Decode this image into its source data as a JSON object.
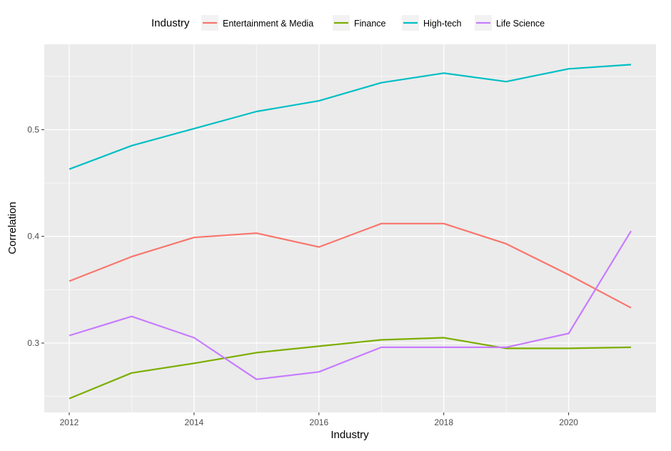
{
  "chart_data": {
    "type": "line",
    "legend_title": "Industry",
    "legend_position": "top",
    "xlabel": "Industry",
    "ylabel": "Correlation",
    "xlim": [
      2011.6,
      2021.4
    ],
    "ylim": [
      0.235,
      0.58
    ],
    "x": [
      2012,
      2013,
      2014,
      2015,
      2016,
      2017,
      2018,
      2019,
      2020,
      2021
    ],
    "x_ticks": [
      2012,
      2014,
      2016,
      2018,
      2020
    ],
    "y_ticks": [
      0.3,
      0.4,
      0.5
    ],
    "y_tick_labels": [
      "0.3",
      "0.4",
      "0.5"
    ],
    "grid": true,
    "panel_color": "#ebebeb",
    "series": [
      {
        "name": "Entertainment & Media",
        "color": "#f8766d",
        "values": [
          0.358,
          0.381,
          0.399,
          0.403,
          0.39,
          0.412,
          0.412,
          0.393,
          0.364,
          0.333
        ]
      },
      {
        "name": "Finance",
        "color": "#7cae00",
        "values": [
          0.248,
          0.272,
          0.281,
          0.291,
          0.297,
          0.303,
          0.305,
          0.295,
          0.295,
          0.296
        ]
      },
      {
        "name": "High-tech",
        "color": "#00bfc4",
        "values": [
          0.463,
          0.485,
          0.501,
          0.517,
          0.527,
          0.544,
          0.553,
          0.545,
          0.557,
          0.561
        ]
      },
      {
        "name": "Life Science",
        "color": "#c77cff",
        "values": [
          0.307,
          0.325,
          0.305,
          0.266,
          0.273,
          0.296,
          0.296,
          0.296,
          0.309,
          0.405
        ]
      }
    ]
  }
}
